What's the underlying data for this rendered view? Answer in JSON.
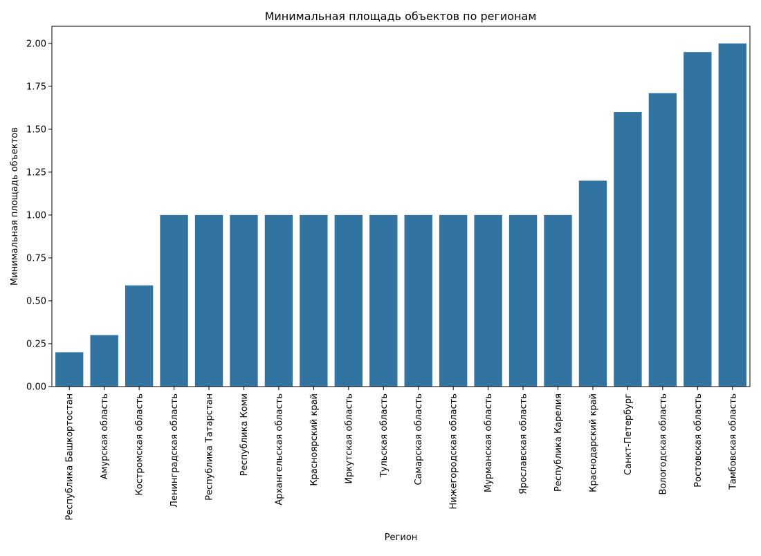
{
  "chart_data": {
    "type": "bar",
    "title": "Минимальная площадь объектов по регионам",
    "xlabel": "Регион",
    "ylabel": "Минимальная площадь объектов",
    "categories": [
      "Республика Башкортостан",
      "Амурская область",
      "Костромская область",
      "Ленинградская область",
      "Республика Татарстан",
      "Республика Коми",
      "Архангельская область",
      "Красноярский край",
      "Иркутская область",
      "Тульская область",
      "Самарская область",
      "Нижегородская область",
      "Мурманская область",
      "Ярославская область",
      "Республика Карелия",
      "Краснодарский край",
      "Санкт-Петербург",
      "Вологодская область",
      "Ростовская область",
      "Тамбовская область"
    ],
    "values": [
      0.2,
      0.3,
      0.59,
      1.0,
      1.0,
      1.0,
      1.0,
      1.0,
      1.0,
      1.0,
      1.0,
      1.0,
      1.0,
      1.0,
      1.0,
      1.2,
      1.6,
      1.71,
      1.95,
      2.0
    ],
    "yticks": [
      "0.00",
      "0.25",
      "0.50",
      "0.75",
      "1.00",
      "1.25",
      "1.50",
      "1.75",
      "2.00"
    ],
    "ylim": [
      0,
      2.1
    ],
    "grid": false,
    "legend": "none",
    "bar_color": "#3274a1"
  }
}
